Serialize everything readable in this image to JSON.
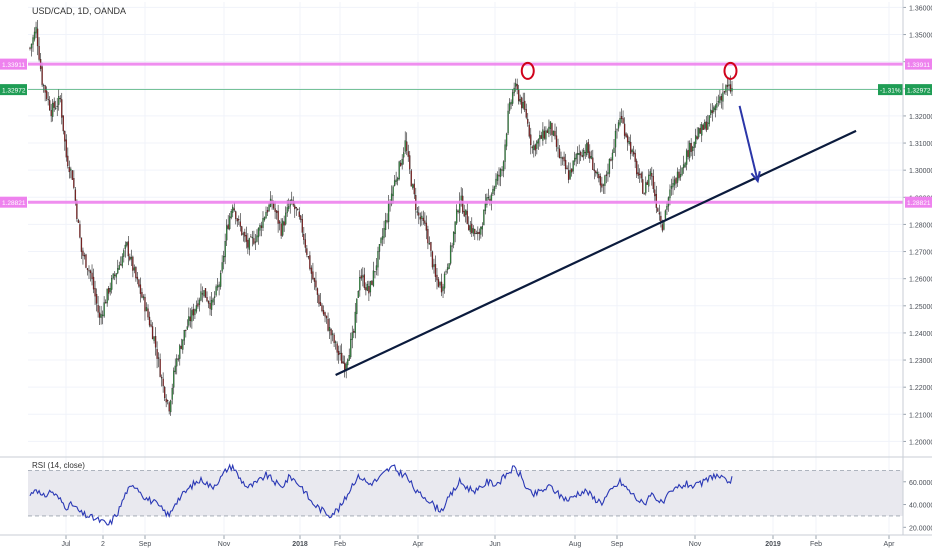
{
  "chart_data": {
    "type": "candlestick",
    "title": "USD/CAD, 1D, OANDA",
    "price_axis": {
      "ylim": [
        1.195,
        1.362
      ],
      "ticks": [
        "1.36000",
        "1.35000",
        "1.34000",
        "1.33000",
        "1.32000",
        "1.31000",
        "1.30000",
        "1.29000",
        "1.28000",
        "1.27000",
        "1.26000",
        "1.25000",
        "1.24000",
        "1.23000",
        "1.22000",
        "1.21000",
        "1.20000"
      ],
      "tick_values": [
        1.36,
        1.35,
        1.34,
        1.33,
        1.32,
        1.31,
        1.3,
        1.29,
        1.28,
        1.27,
        1.26,
        1.25,
        1.24,
        1.23,
        1.22,
        1.21,
        1.2
      ]
    },
    "time_axis": {
      "labels": [
        "Jul",
        "2",
        "Sep",
        "Nov",
        "2018",
        "Feb",
        "Apr",
        "Jun",
        "Aug",
        "Sep",
        "Nov",
        "2019",
        "Feb",
        "Apr"
      ]
    },
    "price_path": [
      [
        0,
        1.345
      ],
      [
        4,
        1.352
      ],
      [
        8,
        1.333
      ],
      [
        14,
        1.322
      ],
      [
        20,
        1.326
      ],
      [
        24,
        1.305
      ],
      [
        28,
        1.298
      ],
      [
        34,
        1.27
      ],
      [
        40,
        1.262
      ],
      [
        46,
        1.245
      ],
      [
        52,
        1.256
      ],
      [
        58,
        1.264
      ],
      [
        64,
        1.272
      ],
      [
        70,
        1.26
      ],
      [
        76,
        1.25
      ],
      [
        82,
        1.238
      ],
      [
        88,
        1.22
      ],
      [
        92,
        1.213
      ],
      [
        96,
        1.228
      ],
      [
        102,
        1.24
      ],
      [
        108,
        1.248
      ],
      [
        114,
        1.256
      ],
      [
        120,
        1.25
      ],
      [
        126,
        1.26
      ],
      [
        130,
        1.278
      ],
      [
        134,
        1.288
      ],
      [
        138,
        1.28
      ],
      [
        144,
        1.272
      ],
      [
        150,
        1.276
      ],
      [
        156,
        1.285
      ],
      [
        160,
        1.288
      ],
      [
        166,
        1.278
      ],
      [
        172,
        1.288
      ],
      [
        176,
        1.285
      ],
      [
        180,
        1.278
      ],
      [
        186,
        1.262
      ],
      [
        192,
        1.25
      ],
      [
        198,
        1.241
      ],
      [
        204,
        1.232
      ],
      [
        208,
        1.228
      ],
      [
        214,
        1.24
      ],
      [
        218,
        1.262
      ],
      [
        224,
        1.255
      ],
      [
        230,
        1.268
      ],
      [
        236,
        1.283
      ],
      [
        240,
        1.294
      ],
      [
        244,
        1.301
      ],
      [
        248,
        1.31
      ],
      [
        252,
        1.296
      ],
      [
        256,
        1.284
      ],
      [
        262,
        1.278
      ],
      [
        268,
        1.26
      ],
      [
        272,
        1.257
      ],
      [
        278,
        1.27
      ],
      [
        284,
        1.29
      ],
      [
        290,
        1.28
      ],
      [
        296,
        1.275
      ],
      [
        302,
        1.288
      ],
      [
        308,
        1.296
      ],
      [
        312,
        1.3
      ],
      [
        316,
        1.32
      ],
      [
        320,
        1.331
      ],
      [
        324,
        1.326
      ],
      [
        328,
        1.32
      ],
      [
        332,
        1.308
      ],
      [
        338,
        1.312
      ],
      [
        344,
        1.316
      ],
      [
        350,
        1.305
      ],
      [
        356,
        1.298
      ],
      [
        362,
        1.306
      ],
      [
        368,
        1.308
      ],
      [
        372,
        1.302
      ],
      [
        378,
        1.292
      ],
      [
        384,
        1.305
      ],
      [
        390,
        1.32
      ],
      [
        396,
        1.31
      ],
      [
        402,
        1.298
      ],
      [
        406,
        1.292
      ],
      [
        410,
        1.3
      ],
      [
        414,
        1.288
      ],
      [
        418,
        1.28
      ],
      [
        422,
        1.29
      ],
      [
        428,
        1.298
      ],
      [
        434,
        1.306
      ],
      [
        440,
        1.312
      ],
      [
        446,
        1.316
      ],
      [
        452,
        1.322
      ],
      [
        456,
        1.327
      ],
      [
        460,
        1.33
      ],
      [
        464,
        1.3297
      ]
    ],
    "levels": [
      {
        "price": 1.3391,
        "label": "1.33911",
        "color": "#ee82ee"
      },
      {
        "price": 1.2882,
        "label": "1.28821",
        "color": "#ee82ee"
      }
    ],
    "last_price": {
      "price": 1.3297,
      "label": "1.32972",
      "change": "-1.31%",
      "color": "#1f9d55"
    },
    "trendlines": [
      {
        "from": [
          202,
          1.2245
        ],
        "to": [
          546,
          1.3145
        ],
        "color": "#0b1b3d"
      }
    ],
    "arrows": [
      {
        "from": [
          469,
          1.3237
        ],
        "to": [
          481,
          1.296
        ],
        "color": "#2b36a8"
      }
    ],
    "markers": [
      {
        "at": [
          329,
          1.3366
        ],
        "shape": "circle",
        "color": "#d0021b"
      },
      {
        "at": [
          463,
          1.3366
        ],
        "shape": "circle",
        "color": "#d0021b"
      }
    ],
    "rsi": {
      "label": "RSI (14, close)",
      "ylim": [
        15,
        80
      ],
      "ticks": [
        "60.0000",
        "40.0000",
        "20.0000"
      ],
      "tick_values": [
        60,
        40,
        20
      ],
      "band": [
        30,
        70
      ],
      "values": [
        [
          0,
          48
        ],
        [
          4,
          55
        ],
        [
          8,
          46
        ],
        [
          14,
          52
        ],
        [
          20,
          44
        ],
        [
          24,
          38
        ],
        [
          28,
          40
        ],
        [
          34,
          32
        ],
        [
          40,
          29
        ],
        [
          46,
          26
        ],
        [
          52,
          22
        ],
        [
          58,
          33
        ],
        [
          64,
          52
        ],
        [
          70,
          57
        ],
        [
          76,
          46
        ],
        [
          82,
          42
        ],
        [
          88,
          35
        ],
        [
          92,
          30
        ],
        [
          96,
          42
        ],
        [
          102,
          50
        ],
        [
          108,
          58
        ],
        [
          114,
          62
        ],
        [
          120,
          55
        ],
        [
          126,
          63
        ],
        [
          130,
          71
        ],
        [
          134,
          74
        ],
        [
          138,
          64
        ],
        [
          144,
          55
        ],
        [
          150,
          59
        ],
        [
          156,
          66
        ],
        [
          160,
          62
        ],
        [
          166,
          55
        ],
        [
          172,
          65
        ],
        [
          176,
          60
        ],
        [
          180,
          55
        ],
        [
          186,
          42
        ],
        [
          192,
          36
        ],
        [
          198,
          31
        ],
        [
          204,
          36
        ],
        [
          208,
          44
        ],
        [
          214,
          60
        ],
        [
          218,
          65
        ],
        [
          224,
          58
        ],
        [
          230,
          62
        ],
        [
          236,
          70
        ],
        [
          240,
          73
        ],
        [
          244,
          68
        ],
        [
          248,
          66
        ],
        [
          252,
          58
        ],
        [
          256,
          50
        ],
        [
          262,
          46
        ],
        [
          268,
          38
        ],
        [
          272,
          35
        ],
        [
          278,
          48
        ],
        [
          284,
          60
        ],
        [
          290,
          54
        ],
        [
          296,
          52
        ],
        [
          302,
          60
        ],
        [
          308,
          58
        ],
        [
          312,
          62
        ],
        [
          316,
          68
        ],
        [
          320,
          72
        ],
        [
          324,
          66
        ],
        [
          328,
          55
        ],
        [
          332,
          48
        ],
        [
          338,
          52
        ],
        [
          344,
          56
        ],
        [
          350,
          48
        ],
        [
          356,
          44
        ],
        [
          362,
          50
        ],
        [
          368,
          52
        ],
        [
          372,
          46
        ],
        [
          378,
          42
        ],
        [
          384,
          52
        ],
        [
          390,
          60
        ],
        [
          396,
          52
        ],
        [
          402,
          44
        ],
        [
          406,
          40
        ],
        [
          410,
          50
        ],
        [
          414,
          46
        ],
        [
          418,
          40
        ],
        [
          422,
          48
        ],
        [
          428,
          55
        ],
        [
          434,
          58
        ],
        [
          440,
          56
        ],
        [
          446,
          60
        ],
        [
          452,
          66
        ],
        [
          456,
          64
        ],
        [
          460,
          60
        ],
        [
          464,
          62
        ]
      ]
    },
    "grid": true
  }
}
